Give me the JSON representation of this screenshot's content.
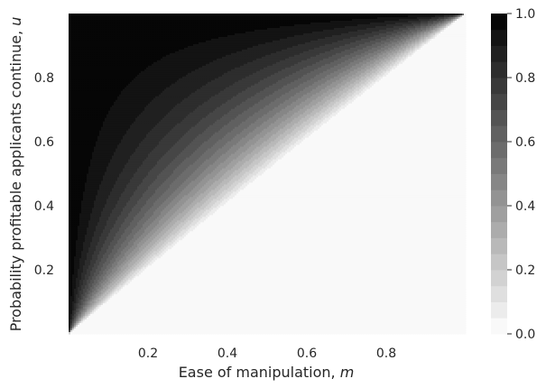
{
  "chart_data": {
    "type": "heatmap",
    "xlabel": "Ease of manipulation, ",
    "xlabel_var": "m",
    "ylabel": "Probability profitable applicants continue, ",
    "ylabel_var": "u",
    "xlim": [
      0.0,
      1.0
    ],
    "ylim": [
      0.0,
      1.0
    ],
    "x_ticks": [
      0.2,
      0.4,
      0.6,
      0.8
    ],
    "x_tick_labels": [
      "0.2",
      "0.4",
      "0.6",
      "0.8"
    ],
    "y_ticks": [
      0.2,
      0.4,
      0.6,
      0.8
    ],
    "y_tick_labels": [
      "0.2",
      "0.4",
      "0.6",
      "0.8"
    ],
    "colorbar": {
      "range": [
        0.0,
        1.0
      ],
      "levels": 20,
      "ticks": [
        0.0,
        0.2,
        0.4,
        0.6,
        0.8,
        1.0
      ],
      "tick_labels": [
        "0.0",
        "0.2",
        "0.4",
        "0.6",
        "0.8",
        "1.0"
      ],
      "colormap": "greys"
    },
    "surface": "z = 0 for u <= m; otherwise z = (u - m) / (u * (1 - m)); maximum 1.0 in the top-left corner (m near 0, u near 1)",
    "grid": false,
    "colors": {
      "low": "#ffffff",
      "high": "#000000",
      "text": "#262626"
    }
  }
}
